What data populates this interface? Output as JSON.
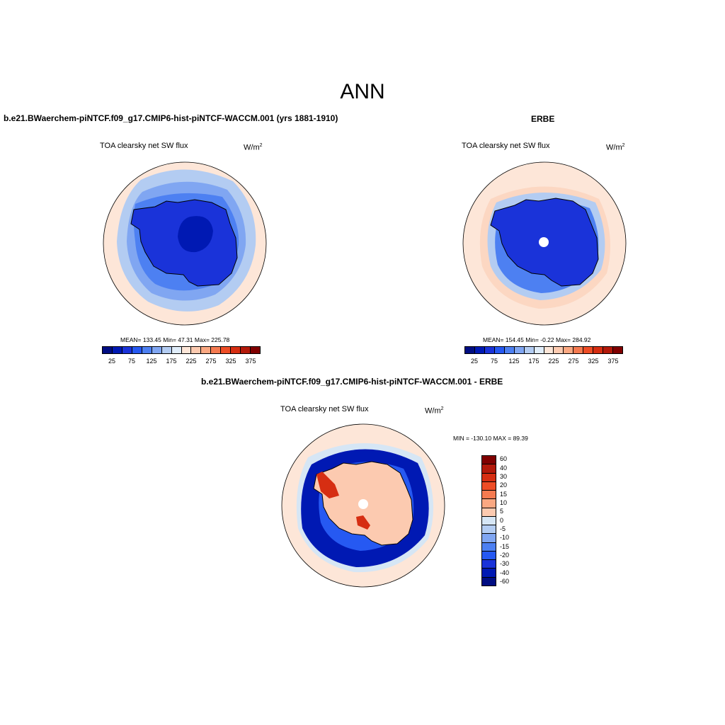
{
  "title": "ANN",
  "panel1": {
    "title": "b.e21.BWaerchem-piNTCF.f09_g17.CMIP6-hist-piNTCF-WACCM.001 (yrs 1881-1910)",
    "var": "TOA clearsky net SW flux",
    "units_base": "W/m",
    "units_exp": "2",
    "stats": "MEAN= 133.45  Min=  47.31  Max= 225.78"
  },
  "panel2": {
    "title": "ERBE",
    "var": "TOA clearsky net SW flux",
    "units_base": "W/m",
    "units_exp": "2",
    "stats": "MEAN= 154.45  Min=  -0.22  Max= 284.92"
  },
  "panel3": {
    "title": "b.e21.BWaerchem-piNTCF.f09_g17.CMIP6-hist-piNTCF-WACCM.001 - ERBE",
    "var": "TOA clearsky net SW flux",
    "units_base": "W/m",
    "units_exp": "2",
    "stats": "MIN = -130.10 MAX =  89.39"
  },
  "colorbar_abs": {
    "colors": [
      "#000d82",
      "#0019b3",
      "#1a33d9",
      "#2659f2",
      "#4d80f2",
      "#80a6f2",
      "#b3ccf2",
      "#e0edfa",
      "#fde6d8",
      "#fccab0",
      "#faa882",
      "#f57a50",
      "#ee4d26",
      "#d62e12",
      "#b3190a",
      "#800000"
    ],
    "labels": [
      "25",
      "75",
      "125",
      "175",
      "225",
      "275",
      "325",
      "375"
    ]
  },
  "colorbar_diff": {
    "colors": [
      "#800000",
      "#b3190a",
      "#d62e12",
      "#ee4d26",
      "#f57a50",
      "#faa882",
      "#fccab0",
      "#d6e6f5",
      "#b3ccf2",
      "#80a6f2",
      "#4d80f2",
      "#2659f2",
      "#1a33d9",
      "#0019b3",
      "#000d82"
    ],
    "labels": [
      "60",
      "40",
      "30",
      "20",
      "15",
      "10",
      "5",
      "0",
      "-5",
      "-10",
      "-15",
      "-20",
      "-30",
      "-40",
      "-60"
    ]
  },
  "map_colors": {
    "ocean_low": "#fde6d8",
    "ring_light": "#b3ccf2",
    "ring_mid": "#80a6f2",
    "ring_med": "#4d80f2",
    "ice": "#1a33d9",
    "ice_deep": "#0019b3",
    "diff_neg": "#0019b3",
    "diff_neg_mid": "#2659f2",
    "diff_zero": "#d6e6f5",
    "diff_pos": "#fccab0",
    "diff_pos_hi": "#d62e12"
  }
}
